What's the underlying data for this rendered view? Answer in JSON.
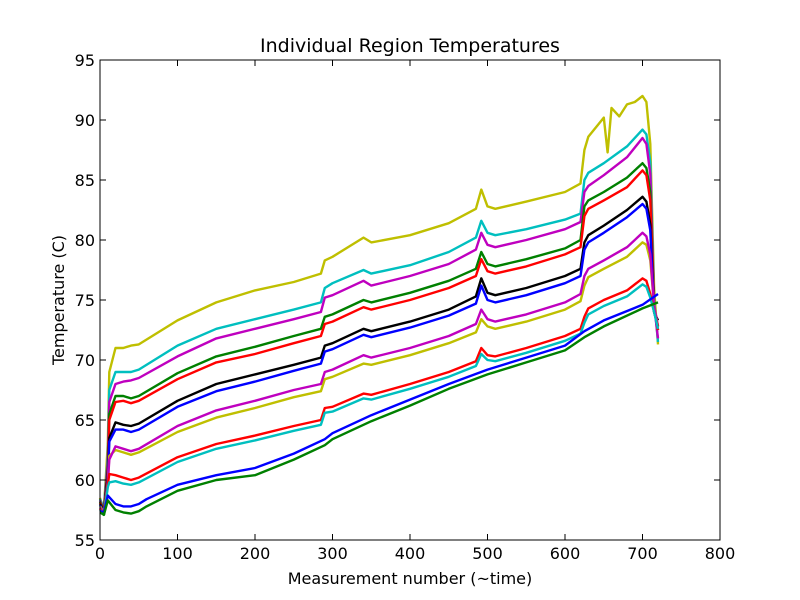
{
  "chart_data": {
    "type": "line",
    "title": "Individual Region Temperatures",
    "xlabel": "Measurement number (~time)",
    "ylabel": "Temperature (C)",
    "xlim": [
      0,
      800
    ],
    "ylim": [
      55,
      95
    ],
    "xticks": [
      0,
      100,
      200,
      300,
      400,
      500,
      600,
      700,
      800
    ],
    "yticks": [
      55,
      60,
      65,
      70,
      75,
      80,
      85,
      90,
      95
    ],
    "grid": false,
    "legend": "none",
    "series": [
      {
        "color": "#bfbf00",
        "x": [
          0,
          5,
          10,
          12,
          20,
          30,
          40,
          50,
          100,
          150,
          200,
          250,
          285,
          290,
          300,
          340,
          350,
          400,
          450,
          485,
          492,
          500,
          510,
          550,
          600,
          620,
          625,
          630,
          650,
          655,
          660,
          670,
          680,
          690,
          700,
          705,
          710,
          715,
          720
        ],
        "y": [
          58.5,
          57.5,
          63,
          69,
          71,
          71,
          71.2,
          71.3,
          73.3,
          74.8,
          75.8,
          76.5,
          77.2,
          78.3,
          78.6,
          80.2,
          79.8,
          80.4,
          81.4,
          82.6,
          84.2,
          82.8,
          82.6,
          83.2,
          84.0,
          84.7,
          87.5,
          88.6,
          90.2,
          87.3,
          91,
          90.3,
          91.3,
          91.5,
          92,
          91.5,
          88,
          76,
          71.3
        ]
      },
      {
        "color": "#00bfbf",
        "x": [
          0,
          5,
          10,
          12,
          20,
          30,
          40,
          50,
          100,
          150,
          200,
          250,
          285,
          290,
          300,
          340,
          350,
          400,
          450,
          485,
          492,
          500,
          510,
          550,
          600,
          620,
          625,
          630,
          650,
          680,
          700,
          705,
          710,
          715,
          720
        ],
        "y": [
          58.4,
          57.6,
          62,
          67.5,
          69,
          69,
          69,
          69.2,
          71.2,
          72.6,
          73.4,
          74.2,
          74.8,
          76.0,
          76.4,
          77.5,
          77.2,
          77.9,
          79.0,
          80.2,
          81.6,
          80.6,
          80.4,
          80.9,
          81.7,
          82.2,
          85,
          85.6,
          86.4,
          87.8,
          89.2,
          88.8,
          86.5,
          75,
          71.5
        ]
      },
      {
        "color": "#bf00bf",
        "x": [
          0,
          5,
          10,
          12,
          20,
          30,
          40,
          50,
          100,
          150,
          200,
          250,
          285,
          290,
          300,
          340,
          350,
          400,
          450,
          485,
          492,
          500,
          510,
          550,
          600,
          620,
          625,
          630,
          650,
          680,
          700,
          705,
          710,
          715,
          720
        ],
        "y": [
          58.3,
          57.5,
          61.5,
          66.5,
          68,
          68.2,
          68.3,
          68.5,
          70.3,
          71.8,
          72.6,
          73.4,
          74.0,
          75.2,
          75.4,
          76.6,
          76.2,
          77,
          78,
          79.2,
          80.6,
          79.6,
          79.4,
          80,
          80.9,
          81.5,
          84,
          84.5,
          85.4,
          86.9,
          88.5,
          88.0,
          85.5,
          74.5,
          71.8
        ]
      },
      {
        "color": "#008000",
        "x": [
          0,
          5,
          10,
          12,
          20,
          30,
          40,
          50,
          100,
          150,
          200,
          250,
          285,
          290,
          300,
          340,
          350,
          400,
          450,
          485,
          492,
          500,
          510,
          550,
          600,
          620,
          625,
          630,
          650,
          680,
          700,
          705,
          710,
          715,
          720
        ],
        "y": [
          58.2,
          57.5,
          61,
          65.5,
          67,
          67,
          66.8,
          67,
          68.9,
          70.3,
          71.1,
          72,
          72.6,
          73.6,
          73.8,
          75,
          74.8,
          75.6,
          76.6,
          77.6,
          79,
          78,
          77.8,
          78.4,
          79.3,
          80,
          82.8,
          83.3,
          84,
          85.2,
          86.4,
          86,
          84,
          74.5,
          72.5
        ]
      },
      {
        "color": "#ff0000",
        "x": [
          0,
          5,
          10,
          12,
          20,
          30,
          40,
          50,
          100,
          150,
          200,
          250,
          285,
          290,
          300,
          340,
          350,
          400,
          450,
          485,
          492,
          500,
          510,
          550,
          600,
          620,
          625,
          630,
          650,
          680,
          700,
          705,
          710,
          715,
          720
        ],
        "y": [
          58.1,
          57.4,
          60.8,
          65,
          66.5,
          66.6,
          66.4,
          66.6,
          68.4,
          69.8,
          70.5,
          71.4,
          72,
          73,
          73.2,
          74.4,
          74.2,
          75,
          76,
          77.0,
          78.4,
          77.4,
          77.2,
          77.8,
          78.8,
          79.4,
          82,
          82.6,
          83.3,
          84.4,
          85.8,
          85.4,
          83.3,
          74.5,
          72.5
        ]
      },
      {
        "color": "#000000",
        "x": [
          0,
          5,
          10,
          12,
          20,
          30,
          40,
          50,
          100,
          150,
          200,
          250,
          285,
          290,
          300,
          340,
          350,
          400,
          450,
          485,
          492,
          500,
          510,
          550,
          600,
          620,
          625,
          630,
          650,
          680,
          700,
          705,
          710,
          715,
          720
        ],
        "y": [
          58.0,
          57.4,
          60.4,
          63.5,
          64.8,
          64.6,
          64.5,
          64.7,
          66.6,
          68,
          68.8,
          69.6,
          70.2,
          71.2,
          71.4,
          72.6,
          72.4,
          73.2,
          74.2,
          75.3,
          76.8,
          75.6,
          75.4,
          76,
          77,
          77.6,
          79.8,
          80.4,
          81.2,
          82.5,
          83.6,
          83.2,
          81.3,
          74,
          73.3
        ]
      },
      {
        "color": "#0000ff",
        "x": [
          0,
          5,
          10,
          12,
          20,
          30,
          40,
          50,
          100,
          150,
          200,
          250,
          285,
          290,
          300,
          340,
          350,
          400,
          450,
          485,
          492,
          500,
          510,
          550,
          600,
          620,
          625,
          630,
          650,
          680,
          700,
          705,
          710,
          715,
          720
        ],
        "y": [
          57.9,
          57.3,
          60,
          63.2,
          64.2,
          64.2,
          64.0,
          64.2,
          66.1,
          67.4,
          68.2,
          69.1,
          69.7,
          70.7,
          70.9,
          72.1,
          71.9,
          72.7,
          73.7,
          74.7,
          76.2,
          75,
          74.8,
          75.4,
          76.4,
          77,
          79.2,
          79.8,
          80.6,
          81.9,
          83,
          82.6,
          80.8,
          74,
          72.8
        ]
      },
      {
        "color": "#bfbf00",
        "x": [
          0,
          5,
          10,
          12,
          20,
          30,
          40,
          50,
          100,
          150,
          200,
          250,
          285,
          290,
          300,
          340,
          350,
          400,
          450,
          485,
          492,
          500,
          510,
          550,
          600,
          620,
          625,
          630,
          650,
          680,
          700,
          705,
          710,
          715,
          720
        ],
        "y": [
          57.8,
          57.3,
          59.8,
          62,
          62.5,
          62.3,
          62.1,
          62.3,
          64.0,
          65.2,
          66,
          66.9,
          67.4,
          68.4,
          68.6,
          69.7,
          69.6,
          70.4,
          71.4,
          72.3,
          73.4,
          72.8,
          72.6,
          73.2,
          74.2,
          74.9,
          76.2,
          76.9,
          77.6,
          78.6,
          79.8,
          79.6,
          78.3,
          74.5,
          72.8
        ]
      },
      {
        "color": "#bf00bf",
        "x": [
          0,
          5,
          10,
          12,
          20,
          30,
          40,
          50,
          100,
          150,
          200,
          250,
          285,
          290,
          300,
          340,
          350,
          400,
          450,
          485,
          492,
          500,
          510,
          550,
          600,
          620,
          625,
          630,
          650,
          680,
          700,
          705,
          710,
          715,
          720
        ],
        "y": [
          57.7,
          57.2,
          59.7,
          61.7,
          62.8,
          62.6,
          62.4,
          62.6,
          64.5,
          65.8,
          66.6,
          67.5,
          68.0,
          69.0,
          69.2,
          70.4,
          70.2,
          71.0,
          72.0,
          73.0,
          74.2,
          73.4,
          73.2,
          73.8,
          74.8,
          75.5,
          77.0,
          77.6,
          78.3,
          79.4,
          80.6,
          80.3,
          78.8,
          74.5,
          72.8
        ]
      },
      {
        "color": "#ff0000",
        "x": [
          0,
          5,
          10,
          12,
          20,
          30,
          40,
          50,
          100,
          150,
          200,
          250,
          285,
          290,
          300,
          340,
          350,
          400,
          450,
          485,
          492,
          500,
          510,
          550,
          600,
          620,
          625,
          630,
          650,
          680,
          700,
          705,
          710,
          715,
          720
        ],
        "y": [
          57.6,
          57.1,
          59.6,
          60.5,
          60.4,
          60.2,
          60.0,
          60.2,
          61.9,
          63,
          63.7,
          64.5,
          65,
          66,
          66.1,
          67.2,
          67.1,
          68,
          69,
          69.9,
          71,
          70.4,
          70.3,
          71,
          72,
          72.6,
          73.6,
          74.3,
          75,
          75.8,
          76.8,
          76.6,
          75.5,
          74,
          72.8
        ]
      },
      {
        "color": "#00bfbf",
        "x": [
          0,
          5,
          10,
          12,
          20,
          30,
          40,
          50,
          100,
          150,
          200,
          250,
          285,
          290,
          300,
          340,
          350,
          400,
          450,
          485,
          492,
          500,
          510,
          550,
          600,
          620,
          625,
          630,
          650,
          680,
          700,
          705,
          710,
          715,
          720
        ],
        "y": [
          57.5,
          57.1,
          59.4,
          59.8,
          59.9,
          59.7,
          59.6,
          59.8,
          61.5,
          62.6,
          63.3,
          64.1,
          64.6,
          65.6,
          65.7,
          66.8,
          66.7,
          67.6,
          68.6,
          69.5,
          70.5,
          70.0,
          69.9,
          70.6,
          71.6,
          72.2,
          73.1,
          73.8,
          74.5,
          75.3,
          76.3,
          76.1,
          75.2,
          74,
          72.6
        ]
      },
      {
        "color": "#0000ff",
        "x": [
          0,
          5,
          10,
          20,
          30,
          40,
          50,
          60,
          100,
          150,
          200,
          250,
          290,
          300,
          350,
          400,
          450,
          500,
          550,
          600,
          625,
          650,
          700,
          720
        ],
        "y": [
          57.4,
          57.3,
          58.7,
          58.0,
          57.8,
          57.8,
          58.0,
          58.4,
          59.6,
          60.4,
          61.0,
          62.2,
          63.4,
          63.9,
          65.4,
          66.7,
          68.0,
          69.2,
          70.2,
          71.2,
          72.4,
          73.3,
          74.6,
          75.5
        ]
      },
      {
        "color": "#008000",
        "x": [
          0,
          5,
          10,
          20,
          30,
          40,
          50,
          60,
          100,
          150,
          200,
          250,
          290,
          300,
          350,
          400,
          450,
          500,
          550,
          600,
          625,
          650,
          700,
          720
        ],
        "y": [
          57.3,
          57.1,
          58.3,
          57.5,
          57.3,
          57.2,
          57.4,
          57.8,
          59.1,
          60.0,
          60.4,
          61.7,
          62.9,
          63.4,
          64.9,
          66.2,
          67.6,
          68.8,
          69.8,
          70.8,
          71.9,
          72.8,
          74.3,
          74.8
        ]
      }
    ]
  }
}
